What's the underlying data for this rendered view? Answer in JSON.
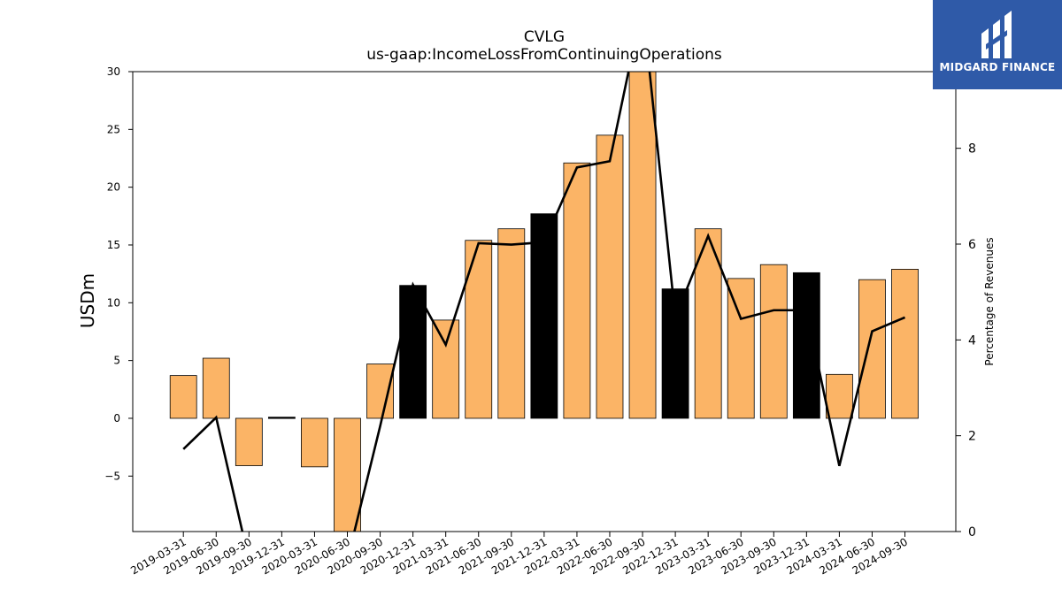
{
  "header": {
    "title_line1": "CVLG",
    "title_line2": "us-gaap:IncomeLossFromContinuingOperations"
  },
  "logo": {
    "text": "MIDGARD FINANCE",
    "bg_color": "#2f5aa8"
  },
  "chart_data": {
    "type": "bar",
    "categories": [
      "2019-03-31",
      "2019-06-30",
      "2019-09-30",
      "2019-12-31",
      "2020-03-31",
      "2020-06-30",
      "2020-09-30",
      "2020-12-31",
      "2021-03-31",
      "2021-06-30",
      "2021-09-30",
      "2021-12-31",
      "2022-03-31",
      "2022-06-30",
      "2022-09-30",
      "2022-12-31",
      "2023-03-31",
      "2023-06-30",
      "2023-09-30",
      "2023-12-31",
      "2024-03-31",
      "2024-06-30",
      "2024-09-30"
    ],
    "series": [
      {
        "axis": "left",
        "kind": "bar",
        "values": [
          3.7,
          5.2,
          -4.1,
          0.1,
          -4.2,
          -10.0,
          4.7,
          11.5,
          8.5,
          15.4,
          16.4,
          17.7,
          22.1,
          24.5,
          31.0,
          11.2,
          16.4,
          12.1,
          13.3,
          12.6,
          3.8,
          12.0,
          12.9
        ],
        "colors": [
          "#fbb466",
          "#fbb466",
          "#fbb466",
          "#000000",
          "#fbb466",
          "#fbb466",
          "#fbb466",
          "#000000",
          "#fbb466",
          "#fbb466",
          "#fbb466",
          "#000000",
          "#fbb466",
          "#fbb466",
          "#fbb466",
          "#000000",
          "#fbb466",
          "#fbb466",
          "#fbb466",
          "#000000",
          "#fbb466",
          "#fbb466",
          "#fbb466"
        ]
      },
      {
        "axis": "right",
        "kind": "line",
        "color": "#000000",
        "values": [
          1.72,
          2.38,
          -0.6,
          0.0,
          null,
          -0.6,
          2.2,
          5.15,
          3.9,
          6.02,
          5.99,
          6.04,
          7.6,
          7.73,
          11.0,
          4.47,
          6.17,
          4.44,
          4.62,
          4.62,
          1.37,
          4.18,
          4.47
        ]
      }
    ],
    "ylabel": "USDm",
    "ylabel_right": "Percentage of Revenues",
    "ylim": [
      -9.8,
      30
    ],
    "ylim_right": [
      0,
      9.6
    ],
    "yticks": [
      -5,
      0,
      5,
      10,
      15,
      20,
      25,
      30
    ],
    "yticks_right": [
      0,
      2,
      4,
      6,
      8
    ],
    "grid": false,
    "legend": "none"
  }
}
